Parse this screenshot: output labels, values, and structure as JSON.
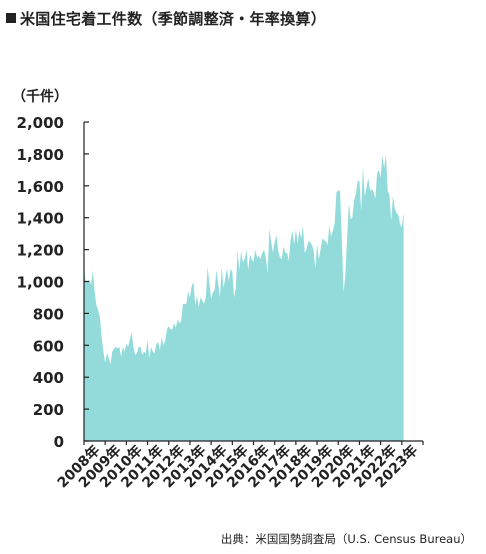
{
  "title": "米国住宅着工件数（季節調整済・年率換算）",
  "unit_label": "（千件）",
  "source": "出典：米国国勢調査局（U.S. Census Bureau）",
  "colors": {
    "area": "#93dbdb",
    "axis": "#222222",
    "text": "#222222"
  },
  "chart_data": {
    "type": "area",
    "title": "米国住宅着工件数（季節調整済・年率換算）",
    "ylabel": "（千件）",
    "xlabel": "",
    "ylim": [
      0,
      2000
    ],
    "yticks": [
      0,
      200,
      400,
      600,
      800,
      1000,
      1200,
      1400,
      1600,
      1800,
      2000
    ],
    "ytick_labels": [
      "0",
      "200",
      "400",
      "600",
      "800",
      "1,000",
      "1,200",
      "1,400",
      "1,600",
      "1,800",
      "2,000"
    ],
    "xtick_labels": [
      "2008年",
      "2009年",
      "2010年",
      "2011年",
      "2012年",
      "2013年",
      "2014年",
      "2015年",
      "2016年",
      "2017年",
      "2018年",
      "2019年",
      "2020年",
      "2021年",
      "2022年",
      "2023年"
    ],
    "grid": false,
    "legend": "none",
    "series": [
      {
        "frequency": "monthly",
        "start": "2008-01",
        "values": [
          1080,
          1000,
          1000,
          1010,
          980,
          1070,
          940,
          850,
          820,
          780,
          650,
          560,
          490,
          550,
          520,
          480,
          560,
          580,
          590,
          580,
          590,
          530,
          590,
          560,
          610,
          590,
          640,
          680,
          590,
          540,
          550,
          590,
          590,
          540,
          560,
          550,
          630,
          520,
          590,
          560,
          550,
          610,
          620,
          570,
          650,
          600,
          630,
          700,
          720,
          700,
          700,
          740,
          710,
          760,
          740,
          750,
          860,
          860,
          860,
          940,
          900,
          970,
          1000,
          850,
          910,
          840,
          900,
          880,
          860,
          900,
          1090,
          990,
          890,
          930,
          950,
          1070,
          990,
          900,
          1090,
          960,
          1020,
          1080,
          1000,
          1080,
          1060,
          900,
          960,
          1190,
          1070,
          1190,
          1120,
          1140,
          1200,
          1070,
          1170,
          1140,
          1120,
          1200,
          1150,
          1160,
          1140,
          1180,
          1200,
          1150,
          1050,
          1330,
          1250,
          1180,
          1250,
          1290,
          1190,
          1150,
          1140,
          1220,
          1180,
          1180,
          1130,
          1260,
          1320,
          1230,
          1330,
          1240,
          1320,
          1270,
          1350,
          1180,
          1200,
          1250,
          1250,
          1230,
          1200,
          1080,
          1230,
          1140,
          1200,
          1270,
          1260,
          1250,
          1230,
          1350,
          1280,
          1320,
          1370,
          1560,
          1570,
          1570,
          1280,
          930,
          1040,
          1270,
          1490,
          1390,
          1400,
          1510,
          1550,
          1630,
          1630,
          1440,
          1720,
          1530,
          1590,
          1650,
          1570,
          1580,
          1560,
          1520,
          1680,
          1700,
          1650,
          1790,
          1710,
          1800,
          1570,
          1540,
          1380,
          1540,
          1460,
          1430,
          1420,
          1360,
          1340,
          1430
        ]
      }
    ]
  }
}
